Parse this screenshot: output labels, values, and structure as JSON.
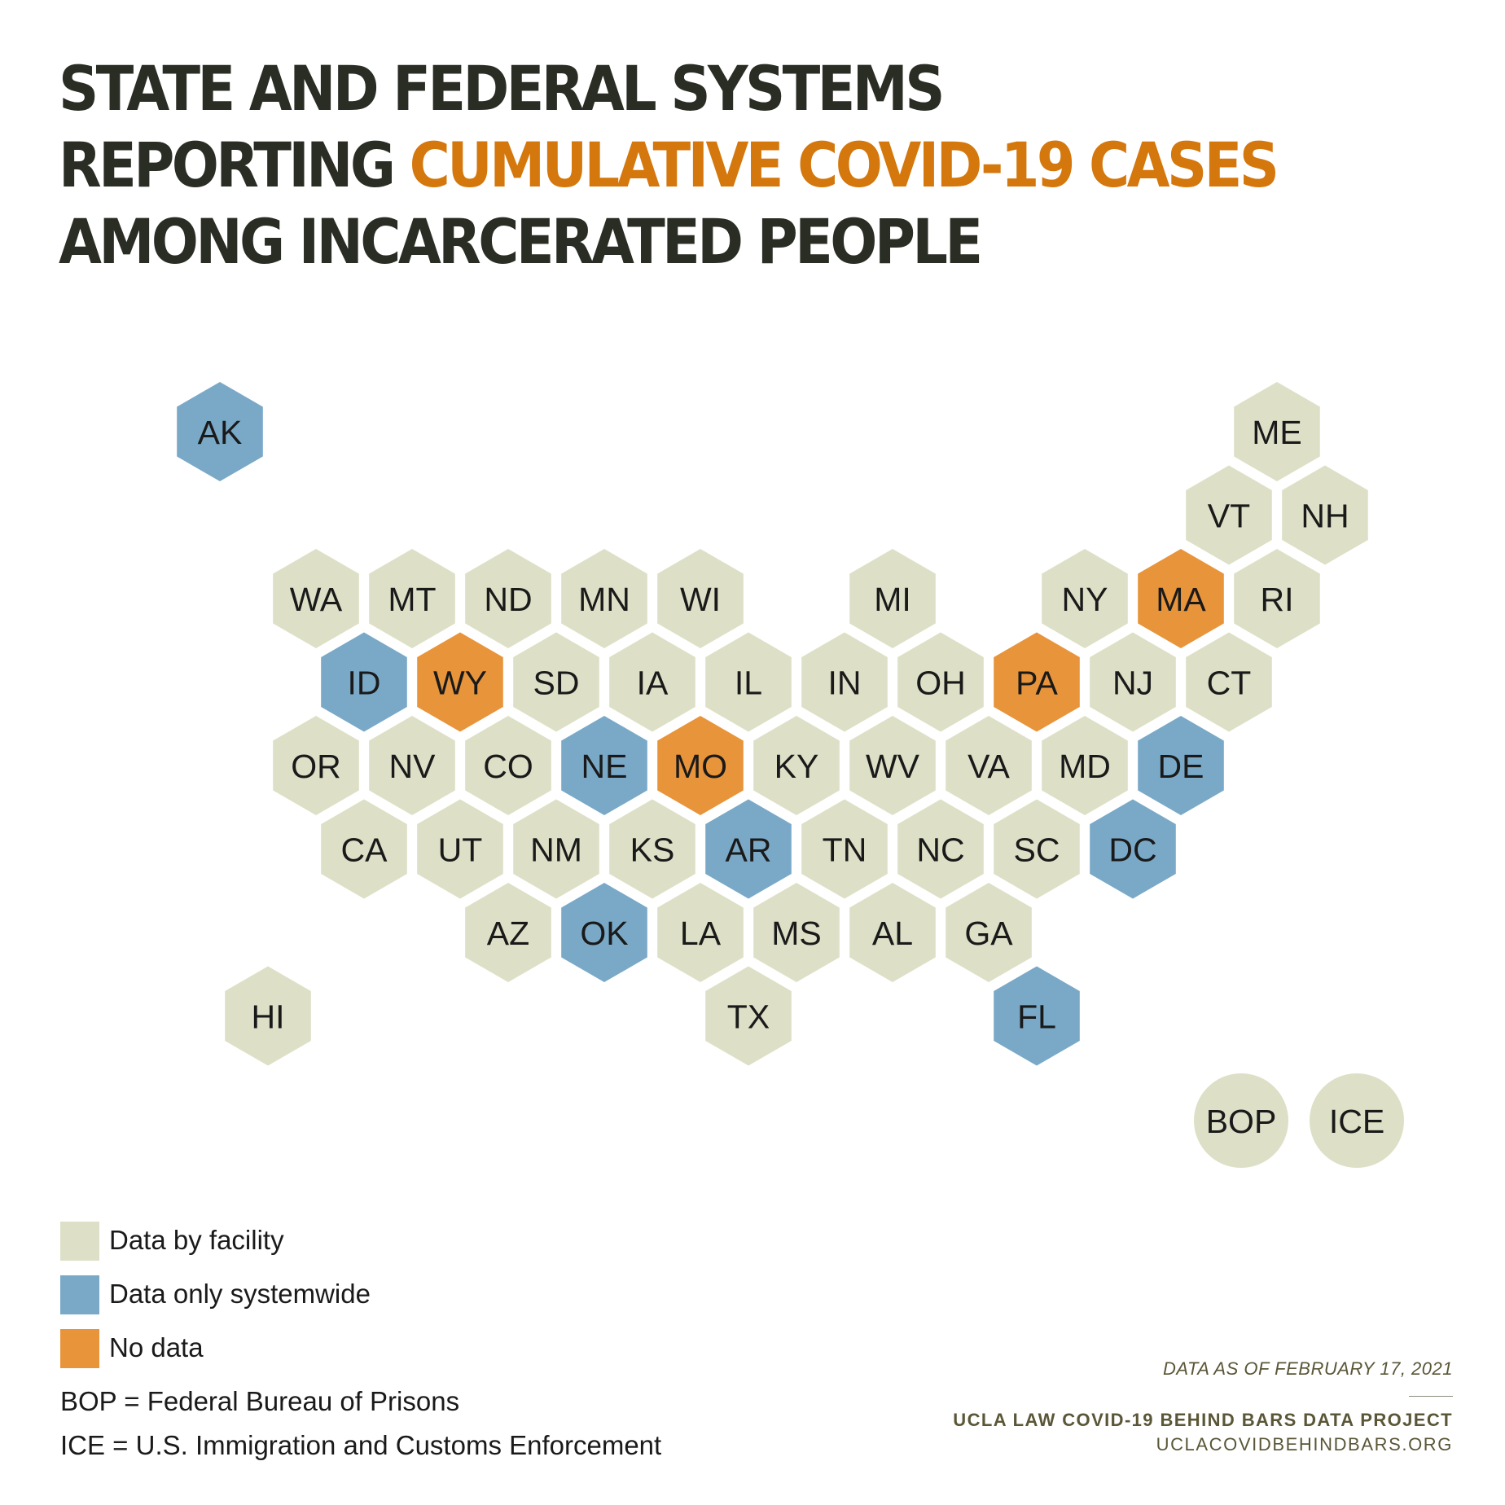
{
  "title": {
    "line1": "STATE AND FEDERAL SYSTEMS",
    "line2_prefix": "REPORTING ",
    "line2_accent": "CUMULATIVE COVID-19 CASES",
    "line3": "AMONG INCARCERATED PEOPLE"
  },
  "colors": {
    "facility": "#dde0c6",
    "systemwide": "#7aa9c8",
    "no_data": "#e8943b",
    "title_accent": "#d4770c",
    "title_text": "#2a2d24",
    "credit_text": "#5a5637"
  },
  "map": {
    "states": [
      {
        "abbr": "AK",
        "category": "systemwide",
        "col": 0,
        "row": 0
      },
      {
        "abbr": "ME",
        "category": "facility",
        "col": 11,
        "row": 0
      },
      {
        "abbr": "VT",
        "category": "facility",
        "col": 10,
        "row": 1
      },
      {
        "abbr": "NH",
        "category": "facility",
        "col": 11,
        "row": 1
      },
      {
        "abbr": "WA",
        "category": "facility",
        "col": 1,
        "row": 2
      },
      {
        "abbr": "MT",
        "category": "facility",
        "col": 2,
        "row": 2
      },
      {
        "abbr": "ND",
        "category": "facility",
        "col": 3,
        "row": 2
      },
      {
        "abbr": "MN",
        "category": "facility",
        "col": 4,
        "row": 2
      },
      {
        "abbr": "WI",
        "category": "facility",
        "col": 5,
        "row": 2
      },
      {
        "abbr": "MI",
        "category": "facility",
        "col": 7,
        "row": 2
      },
      {
        "abbr": "NY",
        "category": "facility",
        "col": 9,
        "row": 2
      },
      {
        "abbr": "MA",
        "category": "no_data",
        "col": 10,
        "row": 2
      },
      {
        "abbr": "RI",
        "category": "facility",
        "col": 11,
        "row": 2
      },
      {
        "abbr": "ID",
        "category": "systemwide",
        "col": 1,
        "row": 3
      },
      {
        "abbr": "WY",
        "category": "no_data",
        "col": 2,
        "row": 3
      },
      {
        "abbr": "SD",
        "category": "facility",
        "col": 3,
        "row": 3
      },
      {
        "abbr": "IA",
        "category": "facility",
        "col": 4,
        "row": 3
      },
      {
        "abbr": "IL",
        "category": "facility",
        "col": 5,
        "row": 3
      },
      {
        "abbr": "IN",
        "category": "facility",
        "col": 6,
        "row": 3
      },
      {
        "abbr": "OH",
        "category": "facility",
        "col": 7,
        "row": 3
      },
      {
        "abbr": "PA",
        "category": "no_data",
        "col": 8,
        "row": 3
      },
      {
        "abbr": "NJ",
        "category": "facility",
        "col": 9,
        "row": 3
      },
      {
        "abbr": "CT",
        "category": "facility",
        "col": 10,
        "row": 3
      },
      {
        "abbr": "OR",
        "category": "facility",
        "col": 1,
        "row": 4
      },
      {
        "abbr": "NV",
        "category": "facility",
        "col": 2,
        "row": 4
      },
      {
        "abbr": "CO",
        "category": "facility",
        "col": 3,
        "row": 4
      },
      {
        "abbr": "NE",
        "category": "systemwide",
        "col": 4,
        "row": 4
      },
      {
        "abbr": "MO",
        "category": "no_data",
        "col": 5,
        "row": 4
      },
      {
        "abbr": "KY",
        "category": "facility",
        "col": 6,
        "row": 4
      },
      {
        "abbr": "WV",
        "category": "facility",
        "col": 7,
        "row": 4
      },
      {
        "abbr": "VA",
        "category": "facility",
        "col": 8,
        "row": 4
      },
      {
        "abbr": "MD",
        "category": "facility",
        "col": 9,
        "row": 4
      },
      {
        "abbr": "DE",
        "category": "systemwide",
        "col": 10,
        "row": 4
      },
      {
        "abbr": "CA",
        "category": "facility",
        "col": 1,
        "row": 5
      },
      {
        "abbr": "UT",
        "category": "facility",
        "col": 2,
        "row": 5
      },
      {
        "abbr": "NM",
        "category": "facility",
        "col": 3,
        "row": 5
      },
      {
        "abbr": "KS",
        "category": "facility",
        "col": 4,
        "row": 5
      },
      {
        "abbr": "AR",
        "category": "systemwide",
        "col": 5,
        "row": 5
      },
      {
        "abbr": "TN",
        "category": "facility",
        "col": 6,
        "row": 5
      },
      {
        "abbr": "NC",
        "category": "facility",
        "col": 7,
        "row": 5
      },
      {
        "abbr": "SC",
        "category": "facility",
        "col": 8,
        "row": 5
      },
      {
        "abbr": "DC",
        "category": "systemwide",
        "col": 9,
        "row": 5
      },
      {
        "abbr": "AZ",
        "category": "facility",
        "col": 3,
        "row": 6
      },
      {
        "abbr": "OK",
        "category": "systemwide",
        "col": 4,
        "row": 6
      },
      {
        "abbr": "LA",
        "category": "facility",
        "col": 5,
        "row": 6
      },
      {
        "abbr": "MS",
        "category": "facility",
        "col": 6,
        "row": 6
      },
      {
        "abbr": "AL",
        "category": "facility",
        "col": 7,
        "row": 6
      },
      {
        "abbr": "GA",
        "category": "facility",
        "col": 8,
        "row": 6
      },
      {
        "abbr": "HI",
        "category": "facility",
        "col": 0,
        "row": 7
      },
      {
        "abbr": "TX",
        "category": "facility",
        "col": 5,
        "row": 7
      },
      {
        "abbr": "FL",
        "category": "systemwide",
        "col": 8,
        "row": 7
      }
    ],
    "federal": [
      {
        "abbr": "BOP",
        "category": "facility"
      },
      {
        "abbr": "ICE",
        "category": "facility"
      }
    ]
  },
  "legend": {
    "items": [
      {
        "category": "facility",
        "label": "Data by facility"
      },
      {
        "category": "systemwide",
        "label": "Data only systemwide"
      },
      {
        "category": "no_data",
        "label": "No data"
      }
    ],
    "notes": [
      "BOP = Federal Bureau of Prisons",
      "ICE = U.S. Immigration and Customs Enforcement"
    ]
  },
  "credit": {
    "date": "DATA AS OF FEBRUARY 17, 2021",
    "project": "UCLA LAW COVID-19 BEHIND BARS DATA PROJECT",
    "url": "UCLACOVIDBEHINDBARS.ORG"
  }
}
